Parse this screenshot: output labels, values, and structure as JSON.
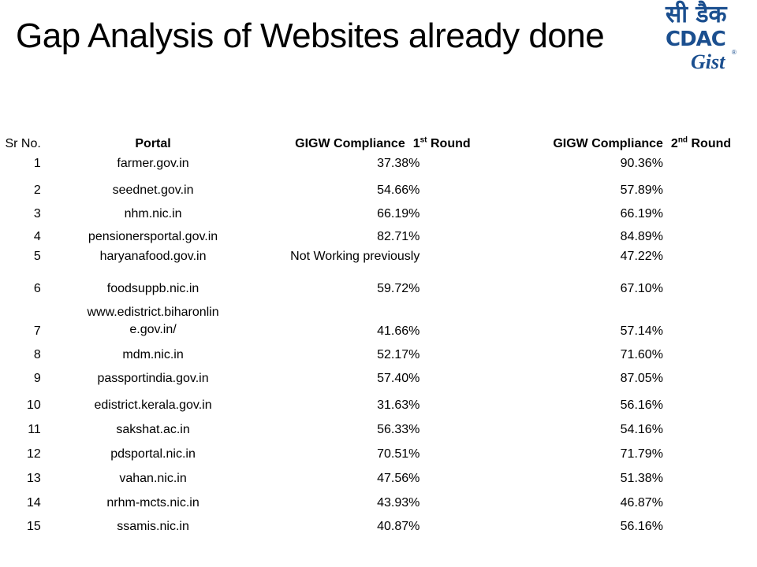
{
  "title": "Gap Analysis of Websites already done",
  "logo": {
    "hindi": "सी डैक",
    "cdac": "CDAC",
    "gist": "Gist",
    "reg": "®"
  },
  "table": {
    "headers": {
      "sr": "Sr No.",
      "portal": "Portal",
      "r1_prefix": "GIGW Compliance",
      "r1_num": "1",
      "r1_sup": "st",
      "r1_suffix": "Round",
      "r2_prefix": "GIGW Compliance",
      "r2_num": "2",
      "r2_sup": "nd",
      "r2_suffix": "Round"
    },
    "rows": [
      {
        "sr": "1",
        "portal": "farmer.gov.in",
        "r1": "37.38%",
        "r2": "90.36%"
      },
      {
        "sr": "2",
        "portal": "seednet.gov.in",
        "r1": "54.66%",
        "r2": "57.89%"
      },
      {
        "sr": "3",
        "portal": "nhm.nic.in",
        "r1": "66.19%",
        "r2": "66.19%"
      },
      {
        "sr": "4",
        "portal": "pensionersportal.gov.in",
        "r1": "82.71%",
        "r2": "84.89%"
      },
      {
        "sr": "5",
        "portal": "haryanafood.gov.in",
        "r1": "Not Working previously",
        "r2": "47.22%"
      },
      {
        "sr": "6",
        "portal": "foodsuppb.nic.in",
        "r1": "59.72%",
        "r2": "67.10%"
      },
      {
        "sr": "7",
        "portal_line1": "www.edistrict.biharonlin",
        "portal_line2": "e.gov.in/",
        "r1": "41.66%",
        "r2": "57.14%"
      },
      {
        "sr": "8",
        "portal": "mdm.nic.in",
        "r1": "52.17%",
        "r2": "71.60%"
      },
      {
        "sr": "9",
        "portal": "passportindia.gov.in",
        "r1": "57.40%",
        "r2": "87.05%"
      },
      {
        "sr": "10",
        "portal": "edistrict.kerala.gov.in",
        "r1": "31.63%",
        "r2": "56.16%"
      },
      {
        "sr": "11",
        "portal": "sakshat.ac.in",
        "r1": "56.33%",
        "r2": "54.16%"
      },
      {
        "sr": "12",
        "portal": "pdsportal.nic.in",
        "r1": "70.51%",
        "r2": "71.79%"
      },
      {
        "sr": "13",
        "portal": "vahan.nic.in",
        "r1": "47.56%",
        "r2": "51.38%"
      },
      {
        "sr": "14",
        "portal": "nrhm-mcts.nic.in",
        "r1": "43.93%",
        "r2": "46.87%"
      },
      {
        "sr": "15",
        "portal": "ssamis.nic.in",
        "r1": "40.87%",
        "r2": "56.16%"
      }
    ]
  }
}
